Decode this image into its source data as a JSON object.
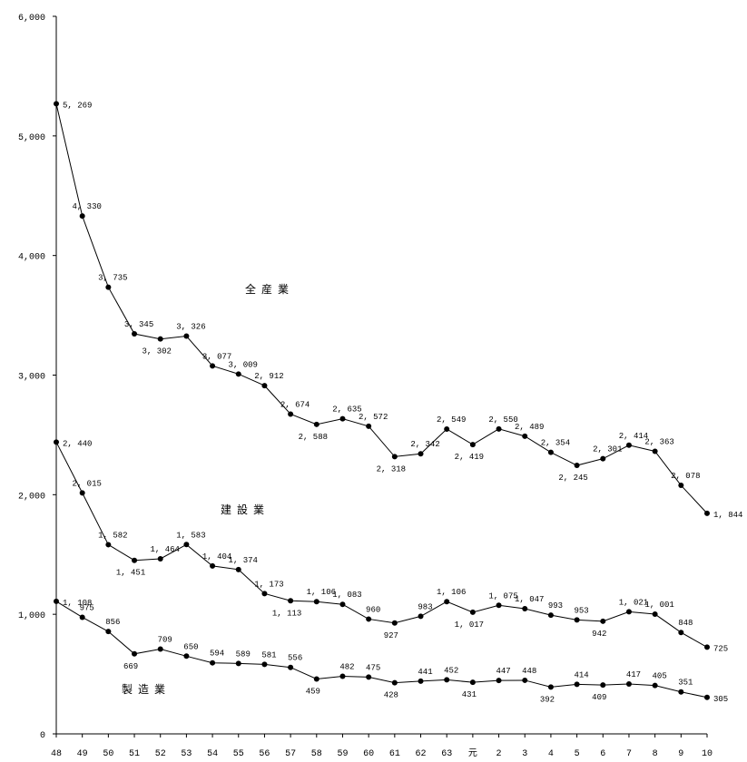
{
  "chart_data": {
    "type": "line",
    "categories": [
      "48",
      "49",
      "50",
      "51",
      "52",
      "53",
      "54",
      "55",
      "56",
      "57",
      "58",
      "59",
      "60",
      "61",
      "62",
      "63",
      "元",
      "2",
      "3",
      "4",
      "5",
      "6",
      "7",
      "8",
      "9",
      "10"
    ],
    "ylim": [
      0,
      6000
    ],
    "yticks": [
      0,
      1000,
      2000,
      3000,
      4000,
      5000,
      6000
    ],
    "ytick_labels": [
      "0",
      "1,000",
      "2,000",
      "3,000",
      "4,000",
      "5,000",
      "6,000"
    ],
    "grid": false,
    "legend": "none",
    "series": [
      {
        "name": "全産業",
        "values": [
          5269,
          4330,
          3735,
          3345,
          3302,
          3326,
          3077,
          3009,
          2912,
          2674,
          2588,
          2635,
          2572,
          2318,
          2342,
          2549,
          2419,
          2550,
          2489,
          2354,
          2245,
          2301,
          2414,
          2363,
          2078,
          1844
        ],
        "value_labels": [
          "5, 269",
          "4, 330",
          "3, 735",
          "3, 345",
          "3, 302",
          "3, 326",
          "3, 077",
          "3, 009",
          "2, 912",
          "2, 674",
          "2, 588",
          "2, 635",
          "2, 572",
          "2, 318",
          "2, 342",
          "2, 549",
          "2, 419",
          "2, 550",
          "2, 489",
          "2, 354",
          "2, 245",
          "2, 301",
          "2, 414",
          "2, 363",
          "2, 078",
          "1, 844"
        ]
      },
      {
        "name": "建設業",
        "values": [
          2440,
          2015,
          1582,
          1451,
          1464,
          1583,
          1404,
          1374,
          1173,
          1113,
          1106,
          1083,
          960,
          927,
          983,
          1106,
          1017,
          1075,
          1047,
          993,
          953,
          942,
          1021,
          1001,
          848,
          725
        ],
        "value_labels": [
          "2, 440",
          "2, 015",
          "1, 582",
          "1, 451",
          "1, 464",
          "1, 583",
          "1, 404",
          "1, 374",
          "1, 173",
          "1, 113",
          "1, 106",
          "1, 083",
          "960",
          "927",
          "983",
          "1, 106",
          "1, 017",
          "1, 075",
          "1, 047",
          "993",
          "953",
          "942",
          "1, 021",
          "1, 001",
          "848",
          "725"
        ]
      },
      {
        "name": "製造業",
        "values": [
          1108,
          975,
          856,
          669,
          709,
          650,
          594,
          589,
          581,
          556,
          459,
          482,
          475,
          428,
          441,
          452,
          431,
          447,
          448,
          392,
          414,
          409,
          417,
          405,
          351,
          305
        ],
        "value_labels": [
          "1, 108",
          "975",
          "856",
          "669",
          "709",
          "650",
          "594",
          "589",
          "581",
          "556",
          "459",
          "482",
          "475",
          "428",
          "441",
          "452",
          "431",
          "447",
          "448",
          "392",
          "414",
          "409",
          "417",
          "405",
          "351",
          "305"
        ]
      }
    ]
  }
}
